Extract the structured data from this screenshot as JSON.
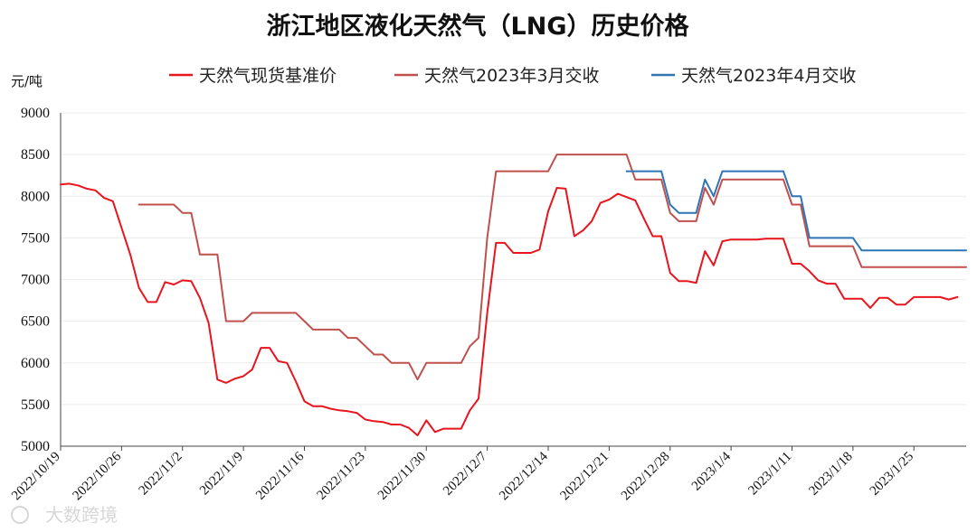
{
  "chart_data": {
    "type": "line",
    "title": "浙江地区液化天然气（LNG）历史价格",
    "ylabel": "元/吨",
    "xlabel": "",
    "ylim": [
      5000,
      9000
    ],
    "xlim": [
      "2022/10/19",
      "2023/1/31"
    ],
    "yticks": [
      5000,
      5500,
      6000,
      6500,
      7000,
      7500,
      8000,
      8500,
      9000
    ],
    "xticks": [
      "2022/10/19",
      "2022/10/26",
      "2022/11/2",
      "2022/11/9",
      "2022/11/16",
      "2022/11/23",
      "2022/11/30",
      "2022/12/7",
      "2022/12/14",
      "2022/12/21",
      "2022/12/28",
      "2023/1/4",
      "2023/1/11",
      "2023/1/18",
      "2023/1/25"
    ],
    "grid": "horizontal",
    "legend_position": "top",
    "watermark": "大数跨境",
    "series": [
      {
        "name": "天然气现货基准价",
        "color": "#e8141e",
        "points": [
          [
            "2022/10/19",
            8140
          ],
          [
            "2022/10/20",
            8150
          ],
          [
            "2022/10/21",
            8130
          ],
          [
            "2022/10/22",
            8090
          ],
          [
            "2022/10/23",
            8070
          ],
          [
            "2022/10/24",
            7980
          ],
          [
            "2022/10/25",
            7940
          ],
          [
            "2022/10/26",
            7620
          ],
          [
            "2022/10/27",
            7300
          ],
          [
            "2022/10/28",
            6900
          ],
          [
            "2022/10/29",
            6730
          ],
          [
            "2022/10/30",
            6730
          ],
          [
            "2022/10/31",
            6970
          ],
          [
            "2022/11/1",
            6940
          ],
          [
            "2022/11/2",
            6990
          ],
          [
            "2022/11/3",
            6980
          ],
          [
            "2022/11/4",
            6780
          ],
          [
            "2022/11/5",
            6480
          ],
          [
            "2022/11/6",
            5800
          ],
          [
            "2022/11/7",
            5760
          ],
          [
            "2022/11/8",
            5810
          ],
          [
            "2022/11/9",
            5840
          ],
          [
            "2022/11/10",
            5920
          ],
          [
            "2022/11/11",
            6180
          ],
          [
            "2022/11/12",
            6180
          ],
          [
            "2022/11/13",
            6020
          ],
          [
            "2022/11/14",
            6000
          ],
          [
            "2022/11/15",
            5780
          ],
          [
            "2022/11/16",
            5540
          ],
          [
            "2022/11/17",
            5480
          ],
          [
            "2022/11/18",
            5480
          ],
          [
            "2022/11/19",
            5450
          ],
          [
            "2022/11/20",
            5430
          ],
          [
            "2022/11/21",
            5420
          ],
          [
            "2022/11/22",
            5400
          ],
          [
            "2022/11/23",
            5320
          ],
          [
            "2022/11/24",
            5300
          ],
          [
            "2022/11/25",
            5290
          ],
          [
            "2022/11/26",
            5260
          ],
          [
            "2022/11/27",
            5260
          ],
          [
            "2022/11/28",
            5220
          ],
          [
            "2022/11/29",
            5130
          ],
          [
            "2022/11/30",
            5310
          ],
          [
            "2022/12/1",
            5170
          ],
          [
            "2022/12/2",
            5210
          ],
          [
            "2022/12/3",
            5210
          ],
          [
            "2022/12/4",
            5210
          ],
          [
            "2022/12/5",
            5430
          ],
          [
            "2022/12/6",
            5570
          ],
          [
            "2022/12/7",
            6600
          ],
          [
            "2022/12/8",
            7440
          ],
          [
            "2022/12/9",
            7440
          ],
          [
            "2022/12/10",
            7320
          ],
          [
            "2022/12/11",
            7320
          ],
          [
            "2022/12/12",
            7320
          ],
          [
            "2022/12/13",
            7360
          ],
          [
            "2022/12/14",
            7820
          ],
          [
            "2022/12/15",
            8100
          ],
          [
            "2022/12/16",
            8090
          ],
          [
            "2022/12/17",
            7520
          ],
          [
            "2022/12/18",
            7590
          ],
          [
            "2022/12/19",
            7700
          ],
          [
            "2022/12/20",
            7920
          ],
          [
            "2022/12/21",
            7960
          ],
          [
            "2022/12/22",
            8030
          ],
          [
            "2022/12/23",
            7990
          ],
          [
            "2022/12/24",
            7950
          ],
          [
            "2022/12/25",
            7730
          ],
          [
            "2022/12/26",
            7520
          ],
          [
            "2022/12/27",
            7520
          ],
          [
            "2022/12/28",
            7080
          ],
          [
            "2022/12/29",
            6980
          ],
          [
            "2022/12/30",
            6980
          ],
          [
            "2022/12/31",
            6960
          ],
          [
            "2023/1/1",
            7340
          ],
          [
            "2023/1/2",
            7170
          ],
          [
            "2023/1/3",
            7460
          ],
          [
            "2023/1/4",
            7480
          ],
          [
            "2023/1/5",
            7480
          ],
          [
            "2023/1/6",
            7480
          ],
          [
            "2023/1/7",
            7480
          ],
          [
            "2023/1/8",
            7490
          ],
          [
            "2023/1/9",
            7490
          ],
          [
            "2023/1/10",
            7490
          ],
          [
            "2023/1/11",
            7190
          ],
          [
            "2023/1/12",
            7190
          ],
          [
            "2023/1/13",
            7100
          ],
          [
            "2023/1/14",
            6990
          ],
          [
            "2023/1/15",
            6950
          ],
          [
            "2023/1/16",
            6950
          ],
          [
            "2023/1/17",
            6770
          ],
          [
            "2023/1/18",
            6770
          ],
          [
            "2023/1/19",
            6770
          ],
          [
            "2023/1/20",
            6660
          ],
          [
            "2023/1/21",
            6780
          ],
          [
            "2023/1/22",
            6780
          ],
          [
            "2023/1/23",
            6700
          ],
          [
            "2023/1/24",
            6700
          ],
          [
            "2023/1/25",
            6790
          ],
          [
            "2023/1/26",
            6790
          ],
          [
            "2023/1/27",
            6790
          ],
          [
            "2023/1/28",
            6790
          ],
          [
            "2023/1/29",
            6760
          ],
          [
            "2023/1/30",
            6790
          ]
        ]
      },
      {
        "name": "天然气2023年3月交收",
        "color": "#c0504d",
        "points": [
          [
            "2022/10/28",
            7900
          ],
          [
            "2022/10/29",
            7900
          ],
          [
            "2022/10/30",
            7900
          ],
          [
            "2022/10/31",
            7900
          ],
          [
            "2022/11/1",
            7900
          ],
          [
            "2022/11/2",
            7800
          ],
          [
            "2022/11/3",
            7800
          ],
          [
            "2022/11/4",
            7300
          ],
          [
            "2022/11/5",
            7300
          ],
          [
            "2022/11/6",
            7300
          ],
          [
            "2022/11/7",
            6500
          ],
          [
            "2022/11/8",
            6500
          ],
          [
            "2022/11/9",
            6500
          ],
          [
            "2022/11/10",
            6600
          ],
          [
            "2022/11/11",
            6600
          ],
          [
            "2022/11/12",
            6600
          ],
          [
            "2022/11/13",
            6600
          ],
          [
            "2022/11/14",
            6600
          ],
          [
            "2022/11/15",
            6600
          ],
          [
            "2022/11/16",
            6500
          ],
          [
            "2022/11/17",
            6400
          ],
          [
            "2022/11/18",
            6400
          ],
          [
            "2022/11/19",
            6400
          ],
          [
            "2022/11/20",
            6400
          ],
          [
            "2022/11/21",
            6300
          ],
          [
            "2022/11/22",
            6300
          ],
          [
            "2022/11/23",
            6200
          ],
          [
            "2022/11/24",
            6100
          ],
          [
            "2022/11/25",
            6100
          ],
          [
            "2022/11/26",
            6000
          ],
          [
            "2022/11/27",
            6000
          ],
          [
            "2022/11/28",
            6000
          ],
          [
            "2022/11/29",
            5800
          ],
          [
            "2022/11/30",
            6000
          ],
          [
            "2022/12/1",
            6000
          ],
          [
            "2022/12/2",
            6000
          ],
          [
            "2022/12/3",
            6000
          ],
          [
            "2022/12/4",
            6000
          ],
          [
            "2022/12/5",
            6200
          ],
          [
            "2022/12/6",
            6300
          ],
          [
            "2022/12/7",
            7500
          ],
          [
            "2022/12/8",
            8300
          ],
          [
            "2022/12/9",
            8300
          ],
          [
            "2022/12/10",
            8300
          ],
          [
            "2022/12/11",
            8300
          ],
          [
            "2022/12/12",
            8300
          ],
          [
            "2022/12/13",
            8300
          ],
          [
            "2022/12/14",
            8300
          ],
          [
            "2022/12/15",
            8500
          ],
          [
            "2022/12/16",
            8500
          ],
          [
            "2022/12/17",
            8500
          ],
          [
            "2022/12/18",
            8500
          ],
          [
            "2022/12/19",
            8500
          ],
          [
            "2022/12/20",
            8500
          ],
          [
            "2022/12/21",
            8500
          ],
          [
            "2022/12/22",
            8500
          ],
          [
            "2022/12/23",
            8500
          ],
          [
            "2022/12/24",
            8200
          ],
          [
            "2022/12/25",
            8200
          ],
          [
            "2022/12/26",
            8200
          ],
          [
            "2022/12/27",
            8200
          ],
          [
            "2022/12/28",
            7800
          ],
          [
            "2022/12/29",
            7700
          ],
          [
            "2022/12/30",
            7700
          ],
          [
            "2022/12/31",
            7700
          ],
          [
            "2023/1/1",
            8100
          ],
          [
            "2023/1/2",
            7900
          ],
          [
            "2023/1/3",
            8200
          ],
          [
            "2023/1/4",
            8200
          ],
          [
            "2023/1/5",
            8200
          ],
          [
            "2023/1/6",
            8200
          ],
          [
            "2023/1/7",
            8200
          ],
          [
            "2023/1/8",
            8200
          ],
          [
            "2023/1/9",
            8200
          ],
          [
            "2023/1/10",
            8200
          ],
          [
            "2023/1/11",
            7900
          ],
          [
            "2023/1/12",
            7900
          ],
          [
            "2023/1/13",
            7400
          ],
          [
            "2023/1/14",
            7400
          ],
          [
            "2023/1/15",
            7400
          ],
          [
            "2023/1/16",
            7400
          ],
          [
            "2023/1/17",
            7400
          ],
          [
            "2023/1/18",
            7400
          ],
          [
            "2023/1/19",
            7150
          ],
          [
            "2023/1/20",
            7150
          ],
          [
            "2023/1/21",
            7150
          ],
          [
            "2023/1/22",
            7150
          ],
          [
            "2023/1/23",
            7150
          ],
          [
            "2023/1/24",
            7150
          ],
          [
            "2023/1/25",
            7150
          ],
          [
            "2023/1/26",
            7150
          ],
          [
            "2023/1/27",
            7150
          ],
          [
            "2023/1/28",
            7150
          ],
          [
            "2023/1/29",
            7150
          ],
          [
            "2023/1/30",
            7150
          ],
          [
            "2023/1/31",
            7150
          ]
        ]
      },
      {
        "name": "天然气2023年4月交收",
        "color": "#2e75b6",
        "points": [
          [
            "2022/12/23",
            8300
          ],
          [
            "2022/12/24",
            8300
          ],
          [
            "2022/12/25",
            8300
          ],
          [
            "2022/12/26",
            8300
          ],
          [
            "2022/12/27",
            8300
          ],
          [
            "2022/12/28",
            7900
          ],
          [
            "2022/12/29",
            7800
          ],
          [
            "2022/12/30",
            7800
          ],
          [
            "2022/12/31",
            7800
          ],
          [
            "2023/1/1",
            8200
          ],
          [
            "2023/1/2",
            8000
          ],
          [
            "2023/1/3",
            8300
          ],
          [
            "2023/1/4",
            8300
          ],
          [
            "2023/1/5",
            8300
          ],
          [
            "2023/1/6",
            8300
          ],
          [
            "2023/1/7",
            8300
          ],
          [
            "2023/1/8",
            8300
          ],
          [
            "2023/1/9",
            8300
          ],
          [
            "2023/1/10",
            8300
          ],
          [
            "2023/1/11",
            8000
          ],
          [
            "2023/1/12",
            8000
          ],
          [
            "2023/1/13",
            7500
          ],
          [
            "2023/1/14",
            7500
          ],
          [
            "2023/1/15",
            7500
          ],
          [
            "2023/1/16",
            7500
          ],
          [
            "2023/1/17",
            7500
          ],
          [
            "2023/1/18",
            7500
          ],
          [
            "2023/1/19",
            7350
          ],
          [
            "2023/1/20",
            7350
          ],
          [
            "2023/1/21",
            7350
          ],
          [
            "2023/1/22",
            7350
          ],
          [
            "2023/1/23",
            7350
          ],
          [
            "2023/1/24",
            7350
          ],
          [
            "2023/1/25",
            7350
          ],
          [
            "2023/1/26",
            7350
          ],
          [
            "2023/1/27",
            7350
          ],
          [
            "2023/1/28",
            7350
          ],
          [
            "2023/1/29",
            7350
          ],
          [
            "2023/1/30",
            7350
          ],
          [
            "2023/1/31",
            7350
          ]
        ]
      }
    ]
  }
}
